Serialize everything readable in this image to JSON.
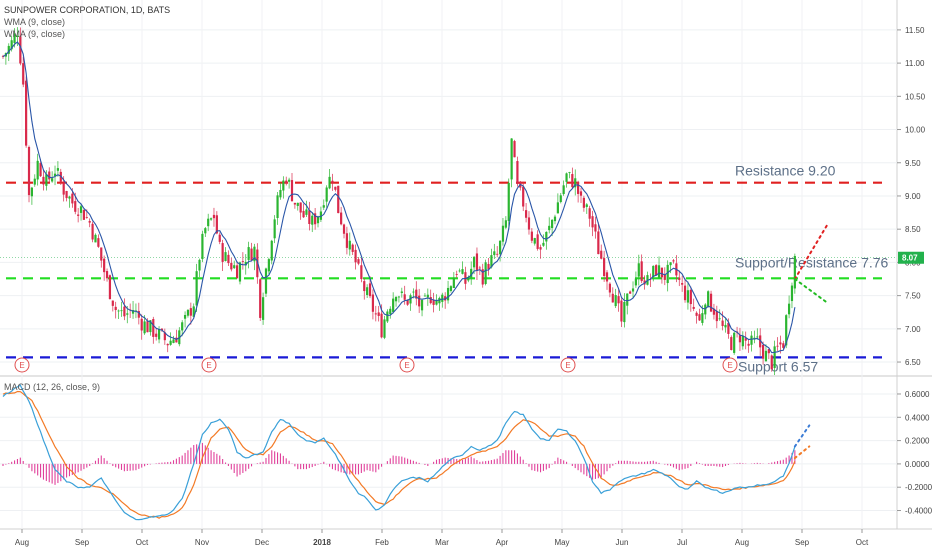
{
  "header": {
    "symbol_title": "SUNPOWER CORPORATION, 1D, BATS",
    "indicator_1": "WMA (9, close)",
    "indicator_2": "WMA (9, close)",
    "macd_title": "MACD (12, 26, close, 9)"
  },
  "colors": {
    "up": "#2bb531",
    "down": "#d9294b",
    "wma": "#2a56a8",
    "resistance": "#e02020",
    "support_resistance": "#22dd22",
    "support": "#1a1ad6",
    "macd_line": "#3aa0d8",
    "signal_line": "#f37a26",
    "histogram": "#e0409a",
    "last_price_tag": "#22b14c",
    "projection_up": "#e02020",
    "projection_down": "#22bb22",
    "projection_macd": "#3a7bd5",
    "projection_signal": "#f37a26",
    "earnings_marker": "#e05050"
  },
  "chart_data": [
    {
      "type": "candlestick",
      "title": "SUNPOWER CORPORATION, 1D, BATS",
      "y_axis_ticks": [
        "11.50",
        "11.00",
        "10.50",
        "10.00",
        "9.50",
        "9.00",
        "8.50",
        "8.00",
        "7.50",
        "7.00",
        "6.50"
      ],
      "ylim": [
        6.35,
        11.95
      ],
      "x_axis_ticks": [
        "Aug",
        "Sep",
        "Oct",
        "Nov",
        "Dec",
        "2018",
        "Feb",
        "Mar",
        "Apr",
        "May",
        "Jun",
        "Jul",
        "Aug",
        "Sep",
        "Oct"
      ],
      "last_price_label": "8.07",
      "last_price": 8.07,
      "close_path": [
        {
          "t": 0,
          "v": 11.1
        },
        {
          "t": 3,
          "v": 11.3
        },
        {
          "t": 5,
          "v": 11.5
        },
        {
          "t": 7,
          "v": 10.7
        },
        {
          "t": 9,
          "v": 9.0
        },
        {
          "t": 12,
          "v": 9.5
        },
        {
          "t": 15,
          "v": 9.2
        },
        {
          "t": 18,
          "v": 9.4
        },
        {
          "t": 21,
          "v": 9.1
        },
        {
          "t": 24,
          "v": 8.9
        },
        {
          "t": 27,
          "v": 8.8
        },
        {
          "t": 30,
          "v": 8.6
        },
        {
          "t": 33,
          "v": 8.2
        },
        {
          "t": 36,
          "v": 7.7
        },
        {
          "t": 39,
          "v": 7.3
        },
        {
          "t": 42,
          "v": 7.2
        },
        {
          "t": 45,
          "v": 7.3
        },
        {
          "t": 48,
          "v": 7.1
        },
        {
          "t": 51,
          "v": 7.0
        },
        {
          "t": 54,
          "v": 6.9
        },
        {
          "t": 57,
          "v": 6.8
        },
        {
          "t": 60,
          "v": 6.9
        },
        {
          "t": 63,
          "v": 7.1
        },
        {
          "t": 66,
          "v": 7.4
        },
        {
          "t": 68,
          "v": 8.1
        },
        {
          "t": 70,
          "v": 8.5
        },
        {
          "t": 73,
          "v": 8.7
        },
        {
          "t": 75,
          "v": 8.2
        },
        {
          "t": 78,
          "v": 8.0
        },
        {
          "t": 81,
          "v": 7.9
        },
        {
          "t": 84,
          "v": 8.1
        },
        {
          "t": 87,
          "v": 8.2
        },
        {
          "t": 89,
          "v": 7.3
        },
        {
          "t": 91,
          "v": 7.9
        },
        {
          "t": 94,
          "v": 8.7
        },
        {
          "t": 96,
          "v": 9.1
        },
        {
          "t": 98,
          "v": 9.3
        },
        {
          "t": 101,
          "v": 8.9
        },
        {
          "t": 104,
          "v": 8.7
        },
        {
          "t": 107,
          "v": 8.6
        },
        {
          "t": 110,
          "v": 8.8
        },
        {
          "t": 112,
          "v": 9.2
        },
        {
          "t": 114,
          "v": 9.3
        },
        {
          "t": 116,
          "v": 8.8
        },
        {
          "t": 118,
          "v": 8.5
        },
        {
          "t": 120,
          "v": 8.2
        },
        {
          "t": 122,
          "v": 8.0
        },
        {
          "t": 124,
          "v": 7.7
        },
        {
          "t": 127,
          "v": 7.4
        },
        {
          "t": 129,
          "v": 7.2
        },
        {
          "t": 131,
          "v": 7.0
        },
        {
          "t": 133,
          "v": 7.3
        },
        {
          "t": 136,
          "v": 7.6
        },
        {
          "t": 139,
          "v": 7.4
        },
        {
          "t": 142,
          "v": 7.5
        },
        {
          "t": 145,
          "v": 7.3
        },
        {
          "t": 148,
          "v": 7.5
        },
        {
          "t": 151,
          "v": 7.4
        },
        {
          "t": 154,
          "v": 7.6
        },
        {
          "t": 157,
          "v": 7.9
        },
        {
          "t": 160,
          "v": 7.7
        },
        {
          "t": 163,
          "v": 8.0
        },
        {
          "t": 166,
          "v": 7.8
        },
        {
          "t": 168,
          "v": 8.0
        },
        {
          "t": 171,
          "v": 8.1
        },
        {
          "t": 174,
          "v": 8.6
        },
        {
          "t": 176,
          "v": 9.8
        },
        {
          "t": 178,
          "v": 9.1
        },
        {
          "t": 180,
          "v": 8.9
        },
        {
          "t": 183,
          "v": 8.4
        },
        {
          "t": 186,
          "v": 8.2
        },
        {
          "t": 189,
          "v": 8.5
        },
        {
          "t": 192,
          "v": 8.9
        },
        {
          "t": 195,
          "v": 9.3
        },
        {
          "t": 198,
          "v": 9.2
        },
        {
          "t": 200,
          "v": 8.9
        },
        {
          "t": 203,
          "v": 8.7
        },
        {
          "t": 206,
          "v": 8.2
        },
        {
          "t": 209,
          "v": 7.8
        },
        {
          "t": 212,
          "v": 7.4
        },
        {
          "t": 214,
          "v": 7.1
        },
        {
          "t": 217,
          "v": 7.6
        },
        {
          "t": 220,
          "v": 7.9
        },
        {
          "t": 223,
          "v": 7.7
        },
        {
          "t": 226,
          "v": 7.9
        },
        {
          "t": 229,
          "v": 7.8
        },
        {
          "t": 232,
          "v": 7.9
        },
        {
          "t": 235,
          "v": 7.6
        },
        {
          "t": 238,
          "v": 7.4
        },
        {
          "t": 241,
          "v": 7.1
        },
        {
          "t": 243,
          "v": 7.5
        },
        {
          "t": 246,
          "v": 7.3
        },
        {
          "t": 249,
          "v": 7.0
        },
        {
          "t": 252,
          "v": 6.8
        },
        {
          "t": 255,
          "v": 6.9
        },
        {
          "t": 258,
          "v": 6.75
        },
        {
          "t": 261,
          "v": 6.8
        },
        {
          "t": 264,
          "v": 6.6
        },
        {
          "t": 266,
          "v": 6.5
        },
        {
          "t": 268,
          "v": 6.7
        },
        {
          "t": 270,
          "v": 6.8
        },
        {
          "t": 272,
          "v": 7.5
        },
        {
          "t": 274,
          "v": 8.07
        }
      ],
      "horizontal_levels": [
        {
          "label": "Resistance 9.20",
          "value": 9.2,
          "color_key": "resistance"
        },
        {
          "label": "Support/Resistance 7.76",
          "value": 7.76,
          "color_key": "support_resistance"
        },
        {
          "label": "Support 6.57",
          "value": 6.57,
          "color_key": "support"
        }
      ],
      "earnings_markers": [
        "E",
        "E",
        "E",
        "E",
        "E"
      ],
      "projections": [
        {
          "name": "up",
          "from": [
            274,
            7.75
          ],
          "to": [
            285,
            8.55
          ]
        },
        {
          "name": "down",
          "from": [
            274,
            7.75
          ],
          "to": [
            285,
            7.4
          ]
        }
      ]
    },
    {
      "type": "macd",
      "title": "MACD (12, 26, close, 9)",
      "y_axis_ticks": [
        "0.6000",
        "0.4000",
        "0.2000",
        "0.0000",
        "-0.2000",
        "-0.4000"
      ],
      "ylim": [
        -0.55,
        0.72
      ],
      "macd_path": [
        {
          "t": 0,
          "v": 0.58
        },
        {
          "t": 6,
          "v": 0.68
        },
        {
          "t": 10,
          "v": 0.48
        },
        {
          "t": 14,
          "v": 0.2
        },
        {
          "t": 18,
          "v": -0.05
        },
        {
          "t": 22,
          "v": -0.15
        },
        {
          "t": 26,
          "v": -0.2
        },
        {
          "t": 30,
          "v": -0.2
        },
        {
          "t": 34,
          "v": -0.12
        },
        {
          "t": 38,
          "v": -0.28
        },
        {
          "t": 42,
          "v": -0.42
        },
        {
          "t": 46,
          "v": -0.48
        },
        {
          "t": 50,
          "v": -0.46
        },
        {
          "t": 54,
          "v": -0.45
        },
        {
          "t": 58,
          "v": -0.42
        },
        {
          "t": 62,
          "v": -0.3
        },
        {
          "t": 66,
          "v": 0.0
        },
        {
          "t": 69,
          "v": 0.25
        },
        {
          "t": 72,
          "v": 0.35
        },
        {
          "t": 75,
          "v": 0.38
        },
        {
          "t": 78,
          "v": 0.3
        },
        {
          "t": 81,
          "v": 0.1
        },
        {
          "t": 84,
          "v": 0.05
        },
        {
          "t": 87,
          "v": 0.08
        },
        {
          "t": 90,
          "v": 0.1
        },
        {
          "t": 93,
          "v": 0.28
        },
        {
          "t": 96,
          "v": 0.38
        },
        {
          "t": 99,
          "v": 0.35
        },
        {
          "t": 102,
          "v": 0.25
        },
        {
          "t": 105,
          "v": 0.2
        },
        {
          "t": 108,
          "v": 0.18
        },
        {
          "t": 111,
          "v": 0.22
        },
        {
          "t": 114,
          "v": 0.12
        },
        {
          "t": 117,
          "v": 0.0
        },
        {
          "t": 120,
          "v": -0.15
        },
        {
          "t": 123,
          "v": -0.25
        },
        {
          "t": 126,
          "v": -0.3
        },
        {
          "t": 129,
          "v": -0.4
        },
        {
          "t": 132,
          "v": -0.35
        },
        {
          "t": 135,
          "v": -0.22
        },
        {
          "t": 138,
          "v": -0.15
        },
        {
          "t": 141,
          "v": -0.12
        },
        {
          "t": 144,
          "v": -0.12
        },
        {
          "t": 147,
          "v": -0.15
        },
        {
          "t": 150,
          "v": -0.08
        },
        {
          "t": 153,
          "v": 0.0
        },
        {
          "t": 156,
          "v": 0.05
        },
        {
          "t": 159,
          "v": 0.08
        },
        {
          "t": 162,
          "v": 0.15
        },
        {
          "t": 165,
          "v": 0.12
        },
        {
          "t": 168,
          "v": 0.15
        },
        {
          "t": 171,
          "v": 0.2
        },
        {
          "t": 174,
          "v": 0.35
        },
        {
          "t": 177,
          "v": 0.45
        },
        {
          "t": 180,
          "v": 0.42
        },
        {
          "t": 183,
          "v": 0.3
        },
        {
          "t": 186,
          "v": 0.22
        },
        {
          "t": 189,
          "v": 0.2
        },
        {
          "t": 192,
          "v": 0.3
        },
        {
          "t": 195,
          "v": 0.28
        },
        {
          "t": 198,
          "v": 0.2
        },
        {
          "t": 201,
          "v": 0.05
        },
        {
          "t": 204,
          "v": -0.15
        },
        {
          "t": 207,
          "v": -0.25
        },
        {
          "t": 210,
          "v": -0.22
        },
        {
          "t": 213,
          "v": -0.15
        },
        {
          "t": 216,
          "v": -0.12
        },
        {
          "t": 219,
          "v": -0.1
        },
        {
          "t": 222,
          "v": -0.08
        },
        {
          "t": 225,
          "v": -0.05
        },
        {
          "t": 228,
          "v": -0.08
        },
        {
          "t": 231,
          "v": -0.12
        },
        {
          "t": 234,
          "v": -0.2
        },
        {
          "t": 237,
          "v": -0.22
        },
        {
          "t": 240,
          "v": -0.15
        },
        {
          "t": 243,
          "v": -0.2
        },
        {
          "t": 246,
          "v": -0.22
        },
        {
          "t": 249,
          "v": -0.25
        },
        {
          "t": 252,
          "v": -0.22
        },
        {
          "t": 255,
          "v": -0.2
        },
        {
          "t": 258,
          "v": -0.2
        },
        {
          "t": 261,
          "v": -0.18
        },
        {
          "t": 264,
          "v": -0.18
        },
        {
          "t": 267,
          "v": -0.15
        },
        {
          "t": 270,
          "v": -0.1
        },
        {
          "t": 272,
          "v": 0.0
        },
        {
          "t": 274,
          "v": 0.15
        }
      ],
      "signal_path": [
        {
          "t": 0,
          "v": 0.6
        },
        {
          "t": 6,
          "v": 0.62
        },
        {
          "t": 10,
          "v": 0.55
        },
        {
          "t": 14,
          "v": 0.35
        },
        {
          "t": 18,
          "v": 0.15
        },
        {
          "t": 22,
          "v": -0.02
        },
        {
          "t": 26,
          "v": -0.12
        },
        {
          "t": 30,
          "v": -0.18
        },
        {
          "t": 34,
          "v": -0.2
        },
        {
          "t": 38,
          "v": -0.26
        },
        {
          "t": 42,
          "v": -0.35
        },
        {
          "t": 46,
          "v": -0.42
        },
        {
          "t": 50,
          "v": -0.45
        },
        {
          "t": 54,
          "v": -0.46
        },
        {
          "t": 58,
          "v": -0.44
        },
        {
          "t": 62,
          "v": -0.38
        },
        {
          "t": 66,
          "v": -0.18
        },
        {
          "t": 69,
          "v": 0.05
        },
        {
          "t": 72,
          "v": 0.22
        },
        {
          "t": 75,
          "v": 0.3
        },
        {
          "t": 78,
          "v": 0.32
        },
        {
          "t": 81,
          "v": 0.22
        },
        {
          "t": 84,
          "v": 0.12
        },
        {
          "t": 87,
          "v": 0.08
        },
        {
          "t": 90,
          "v": 0.08
        },
        {
          "t": 93,
          "v": 0.15
        },
        {
          "t": 96,
          "v": 0.28
        },
        {
          "t": 99,
          "v": 0.32
        },
        {
          "t": 102,
          "v": 0.3
        },
        {
          "t": 105,
          "v": 0.25
        },
        {
          "t": 108,
          "v": 0.2
        },
        {
          "t": 111,
          "v": 0.2
        },
        {
          "t": 114,
          "v": 0.17
        },
        {
          "t": 117,
          "v": 0.08
        },
        {
          "t": 120,
          "v": -0.05
        },
        {
          "t": 123,
          "v": -0.15
        },
        {
          "t": 126,
          "v": -0.24
        },
        {
          "t": 129,
          "v": -0.32
        },
        {
          "t": 132,
          "v": -0.35
        },
        {
          "t": 135,
          "v": -0.3
        },
        {
          "t": 138,
          "v": -0.22
        },
        {
          "t": 141,
          "v": -0.16
        },
        {
          "t": 144,
          "v": -0.13
        },
        {
          "t": 147,
          "v": -0.13
        },
        {
          "t": 150,
          "v": -0.12
        },
        {
          "t": 153,
          "v": -0.06
        },
        {
          "t": 156,
          "v": 0.0
        },
        {
          "t": 159,
          "v": 0.04
        },
        {
          "t": 162,
          "v": 0.08
        },
        {
          "t": 165,
          "v": 0.1
        },
        {
          "t": 168,
          "v": 0.12
        },
        {
          "t": 171,
          "v": 0.15
        },
        {
          "t": 174,
          "v": 0.22
        },
        {
          "t": 177,
          "v": 0.32
        },
        {
          "t": 180,
          "v": 0.38
        },
        {
          "t": 183,
          "v": 0.36
        },
        {
          "t": 186,
          "v": 0.3
        },
        {
          "t": 189,
          "v": 0.24
        },
        {
          "t": 192,
          "v": 0.24
        },
        {
          "t": 195,
          "v": 0.26
        },
        {
          "t": 198,
          "v": 0.24
        },
        {
          "t": 201,
          "v": 0.15
        },
        {
          "t": 204,
          "v": 0.0
        },
        {
          "t": 207,
          "v": -0.12
        },
        {
          "t": 210,
          "v": -0.18
        },
        {
          "t": 213,
          "v": -0.18
        },
        {
          "t": 216,
          "v": -0.15
        },
        {
          "t": 219,
          "v": -0.12
        },
        {
          "t": 222,
          "v": -0.1
        },
        {
          "t": 225,
          "v": -0.08
        },
        {
          "t": 228,
          "v": -0.08
        },
        {
          "t": 231,
          "v": -0.1
        },
        {
          "t": 234,
          "v": -0.14
        },
        {
          "t": 237,
          "v": -0.18
        },
        {
          "t": 240,
          "v": -0.17
        },
        {
          "t": 243,
          "v": -0.18
        },
        {
          "t": 246,
          "v": -0.2
        },
        {
          "t": 249,
          "v": -0.22
        },
        {
          "t": 252,
          "v": -0.22
        },
        {
          "t": 255,
          "v": -0.21
        },
        {
          "t": 258,
          "v": -0.2
        },
        {
          "t": 261,
          "v": -0.19
        },
        {
          "t": 264,
          "v": -0.18
        },
        {
          "t": 267,
          "v": -0.17
        },
        {
          "t": 270,
          "v": -0.14
        },
        {
          "t": 272,
          "v": -0.08
        },
        {
          "t": 274,
          "v": 0.02
        }
      ],
      "projections": [
        {
          "name": "macd",
          "from": [
            274,
            0.15
          ],
          "to": [
            279,
            0.33
          ]
        },
        {
          "name": "signal",
          "from": [
            274,
            0.05
          ],
          "to": [
            279,
            0.15
          ]
        }
      ]
    }
  ]
}
